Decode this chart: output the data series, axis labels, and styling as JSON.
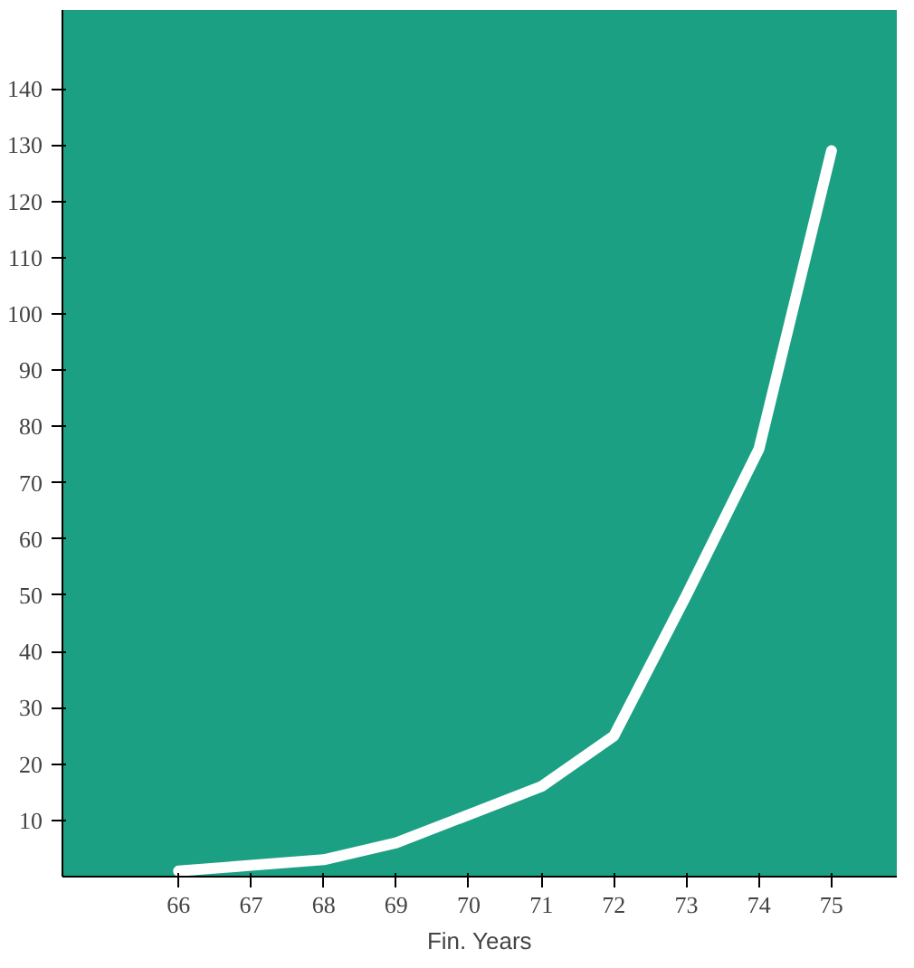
{
  "chart_data": {
    "type": "line",
    "xlabel": "Fin. Years",
    "x": [
      66,
      67,
      68,
      69,
      70,
      71,
      72,
      73,
      74,
      75
    ],
    "series": [
      {
        "color": "#ffffff",
        "values": [
          1,
          2,
          3,
          6,
          11,
          16,
          25,
          50,
          76,
          129
        ]
      }
    ],
    "xlim": [
      64.4,
      75.9
    ],
    "xticks": [
      66,
      67,
      68,
      69,
      70,
      71,
      72,
      73,
      74,
      75
    ],
    "ylim": [
      0,
      154
    ],
    "yticks": [
      10,
      20,
      30,
      40,
      50,
      60,
      70,
      80,
      90,
      100,
      110,
      120,
      130,
      140
    ],
    "grid": false,
    "marker": "none",
    "line_style": "solid"
  }
}
